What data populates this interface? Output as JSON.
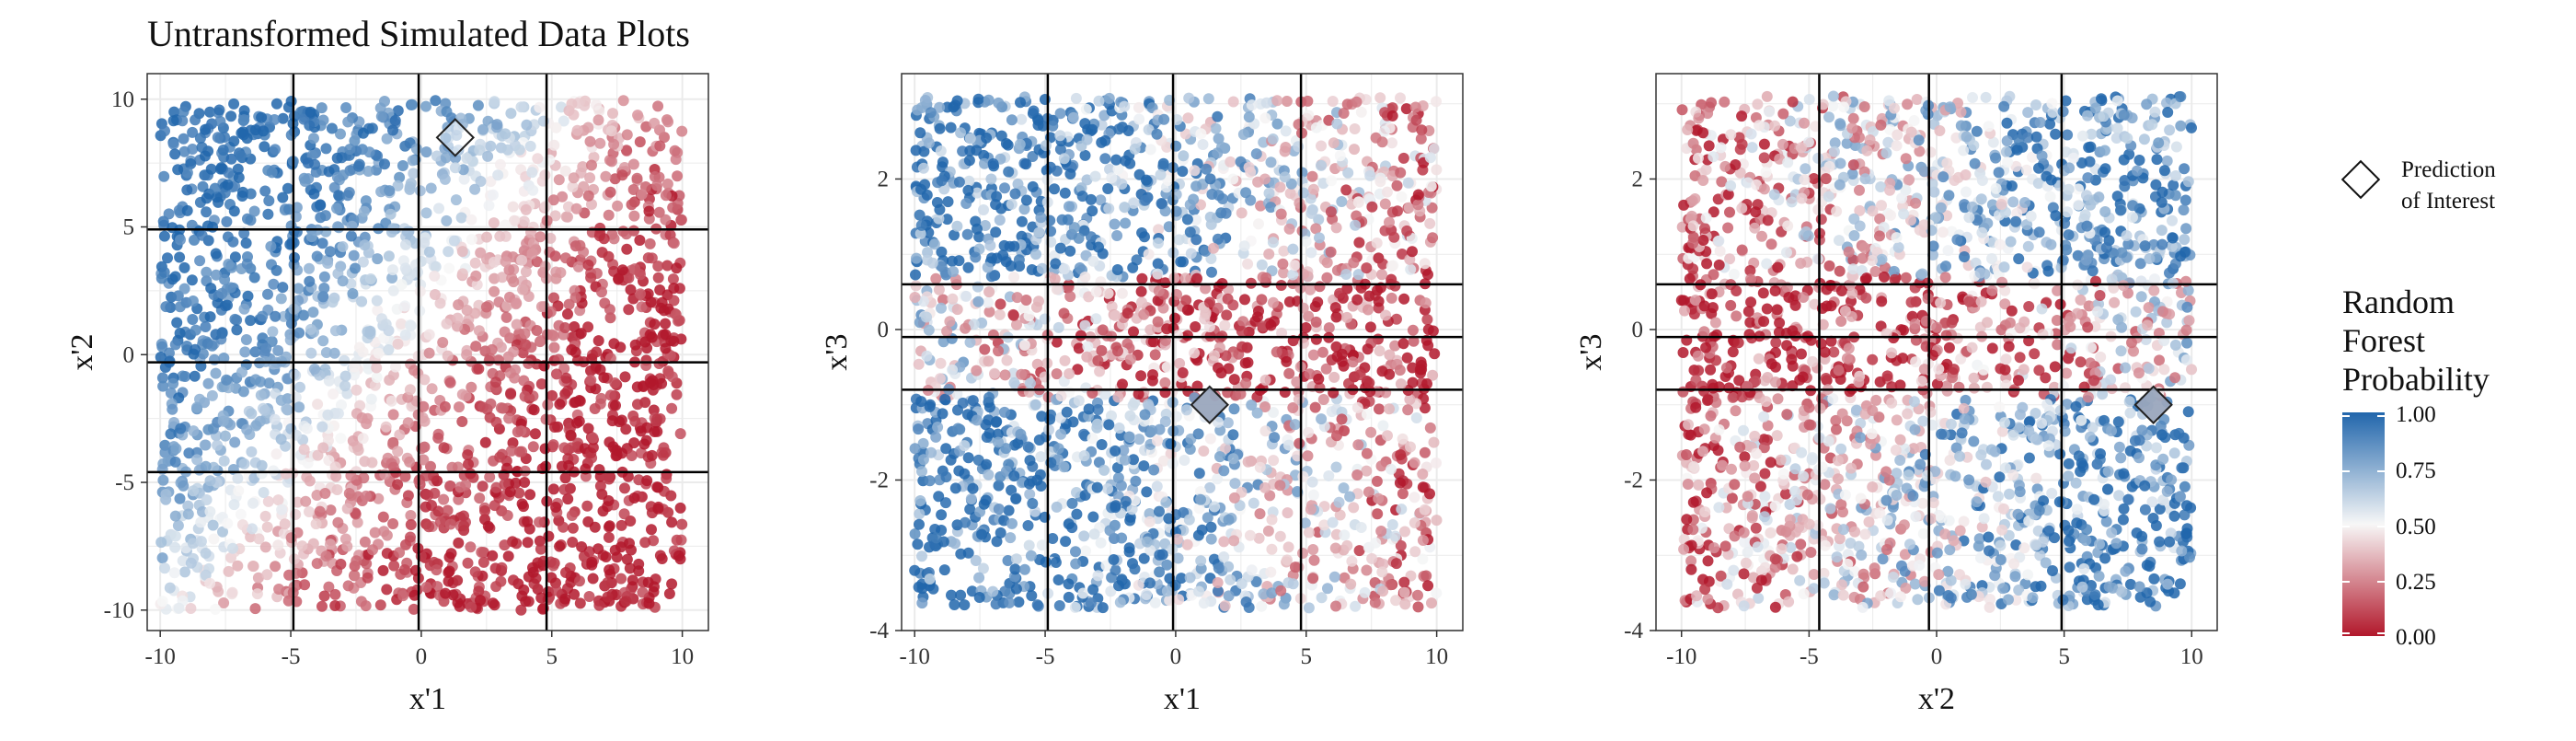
{
  "title": "Untransformed Simulated Data Plots",
  "legend": {
    "shape_label_line1": "Prediction",
    "shape_label_line2": "of Interest",
    "color_title_lines": [
      "Random",
      "Forest",
      "Probability"
    ],
    "color_ticks": [
      "1.00",
      "0.75",
      "0.50",
      "0.25",
      "0.00"
    ],
    "color_low": "#b2182b",
    "color_mid": "#f7f7f7",
    "color_high": "#2166ac"
  },
  "chart_data": [
    {
      "type": "scatter",
      "xlabel": "x'1",
      "ylabel": "x'2",
      "xlim": [
        -10.5,
        11
      ],
      "ylim": [
        -10.8,
        11
      ],
      "xticks": [
        -10,
        -5,
        0,
        5,
        10
      ],
      "xtick_labels": [
        "-10",
        "-5",
        "0",
        "5",
        "10"
      ],
      "yticks": [
        -10,
        -5,
        0,
        5,
        10
      ],
      "ytick_labels": [
        "-10",
        "-5",
        "0",
        "5",
        "10"
      ],
      "vlines": [
        -4.9,
        -0.1,
        4.8
      ],
      "hlines": [
        4.9,
        -0.3,
        -4.6
      ],
      "prediction_of_interest": {
        "x": 1.3,
        "y": 8.5
      },
      "grid": true
    },
    {
      "type": "scatter",
      "xlabel": "x'1",
      "ylabel": "x'3",
      "xlim": [
        -10.5,
        11
      ],
      "ylim": [
        -4,
        3.4
      ],
      "xticks": [
        -10,
        -5,
        0,
        5,
        10
      ],
      "xtick_labels": [
        "-10",
        "-5",
        "0",
        "5",
        "10"
      ],
      "yticks": [
        -4,
        -2,
        0,
        2
      ],
      "ytick_labels": [
        "-4",
        "-2",
        "0",
        "2"
      ],
      "vlines": [
        -4.9,
        -0.1,
        4.8
      ],
      "hlines": [
        0.6,
        -0.1,
        -0.8
      ],
      "prediction_of_interest": {
        "x": 1.3,
        "y": -1.0
      },
      "grid": true
    },
    {
      "type": "scatter",
      "xlabel": "x'2",
      "ylabel": "x'3",
      "xlim": [
        -11,
        11
      ],
      "ylim": [
        -4,
        3.4
      ],
      "xticks": [
        -10,
        -5,
        0,
        5,
        10
      ],
      "xtick_labels": [
        "-10",
        "-5",
        "0",
        "5",
        "10"
      ],
      "yticks": [
        -4,
        -2,
        0,
        2
      ],
      "ytick_labels": [
        "-4",
        "-2",
        "0",
        "2"
      ],
      "vlines": [
        -4.6,
        -0.3,
        4.9
      ],
      "hlines": [
        0.6,
        -0.1,
        -0.8
      ],
      "prediction_of_interest": {
        "x": 8.5,
        "y": -1.0
      },
      "grid": true
    }
  ]
}
